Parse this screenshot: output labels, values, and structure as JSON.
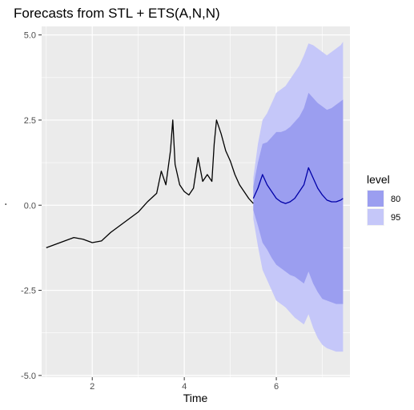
{
  "chart_data": {
    "type": "line",
    "title": "Forecasts from STL +  ETS(A,N,N)",
    "xlabel": "Time",
    "ylabel": ".",
    "xlim": [
      0.9,
      7.6
    ],
    "ylim": [
      -5.05,
      5.25
    ],
    "x_ticks": [
      2,
      4,
      6
    ],
    "x_tick_labels": [
      "2",
      "4",
      "6"
    ],
    "y_ticks": [
      -5,
      -2.5,
      0,
      2.5,
      5
    ],
    "y_tick_labels": [
      "-5.0",
      "-2.5",
      "0.0",
      "2.5",
      "5.0"
    ],
    "grid": true,
    "legend": {
      "title": "level",
      "position": "right",
      "entries": [
        {
          "label": "80",
          "color": "#9b9ef0"
        },
        {
          "label": "95",
          "color": "#c5c7f9"
        }
      ]
    },
    "series": [
      {
        "role": "history",
        "color": "#000000",
        "x": [
          1.0,
          1.2,
          1.4,
          1.6,
          1.8,
          2.0,
          2.2,
          2.4,
          2.6,
          2.8,
          3.0,
          3.2,
          3.4,
          3.5,
          3.6,
          3.7,
          3.75,
          3.8,
          3.9,
          4.0,
          4.1,
          4.2,
          4.3,
          4.4,
          4.5,
          4.6,
          4.65,
          4.7,
          4.8,
          4.9,
          5.0,
          5.1,
          5.2,
          5.3,
          5.4,
          5.5
        ],
        "y": [
          -1.25,
          -1.15,
          -1.05,
          -0.95,
          -1.0,
          -1.1,
          -1.05,
          -0.8,
          -0.6,
          -0.4,
          -0.2,
          0.1,
          0.35,
          1.0,
          0.6,
          1.6,
          2.5,
          1.2,
          0.6,
          0.4,
          0.3,
          0.5,
          1.4,
          0.7,
          0.9,
          0.7,
          1.8,
          2.5,
          2.1,
          1.6,
          1.3,
          0.9,
          0.6,
          0.4,
          0.2,
          0.05
        ]
      },
      {
        "role": "forecast",
        "color": "#0000a8",
        "x": [
          5.5,
          5.6,
          5.7,
          5.8,
          5.9,
          6.0,
          6.1,
          6.2,
          6.3,
          6.4,
          6.5,
          6.6,
          6.7,
          6.8,
          6.9,
          7.0,
          7.1,
          7.2,
          7.3,
          7.4,
          7.45
        ],
        "y": [
          0.2,
          0.5,
          0.9,
          0.6,
          0.4,
          0.2,
          0.1,
          0.05,
          0.1,
          0.2,
          0.4,
          0.6,
          1.1,
          0.8,
          0.5,
          0.3,
          0.15,
          0.1,
          0.1,
          0.15,
          0.2
        ]
      }
    ],
    "intervals": [
      {
        "level": "95",
        "color": "#c5c7f9",
        "x": [
          5.5,
          5.6,
          5.7,
          5.8,
          5.9,
          6.0,
          6.1,
          6.2,
          6.3,
          6.4,
          6.5,
          6.6,
          6.7,
          6.8,
          6.9,
          7.0,
          7.1,
          7.2,
          7.3,
          7.4,
          7.45
        ],
        "upper": [
          0.8,
          1.8,
          2.5,
          2.7,
          3.0,
          3.3,
          3.4,
          3.5,
          3.7,
          3.9,
          4.1,
          4.4,
          4.75,
          4.7,
          4.6,
          4.5,
          4.4,
          4.5,
          4.6,
          4.7,
          4.8
        ],
        "lower": [
          -0.4,
          -1.2,
          -1.9,
          -2.2,
          -2.5,
          -2.8,
          -2.9,
          -3.0,
          -3.15,
          -3.3,
          -3.4,
          -3.5,
          -3.2,
          -3.6,
          -3.9,
          -4.1,
          -4.2,
          -4.25,
          -4.3,
          -4.3,
          -4.3
        ]
      },
      {
        "level": "80",
        "color": "#9b9ef0",
        "x": [
          5.5,
          5.6,
          5.7,
          5.8,
          5.9,
          6.0,
          6.1,
          6.2,
          6.3,
          6.4,
          6.5,
          6.6,
          6.7,
          6.8,
          6.9,
          7.0,
          7.1,
          7.2,
          7.3,
          7.4,
          7.45
        ],
        "upper": [
          0.55,
          1.25,
          1.8,
          1.85,
          2.0,
          2.15,
          2.15,
          2.2,
          2.3,
          2.45,
          2.6,
          2.85,
          3.3,
          3.15,
          3.0,
          2.9,
          2.8,
          2.85,
          2.95,
          3.05,
          3.1
        ],
        "lower": [
          -0.15,
          -0.6,
          -1.1,
          -1.3,
          -1.55,
          -1.75,
          -1.85,
          -1.95,
          -2.05,
          -2.1,
          -2.2,
          -2.3,
          -1.95,
          -2.3,
          -2.55,
          -2.75,
          -2.8,
          -2.85,
          -2.9,
          -2.9,
          -2.9
        ]
      }
    ]
  }
}
